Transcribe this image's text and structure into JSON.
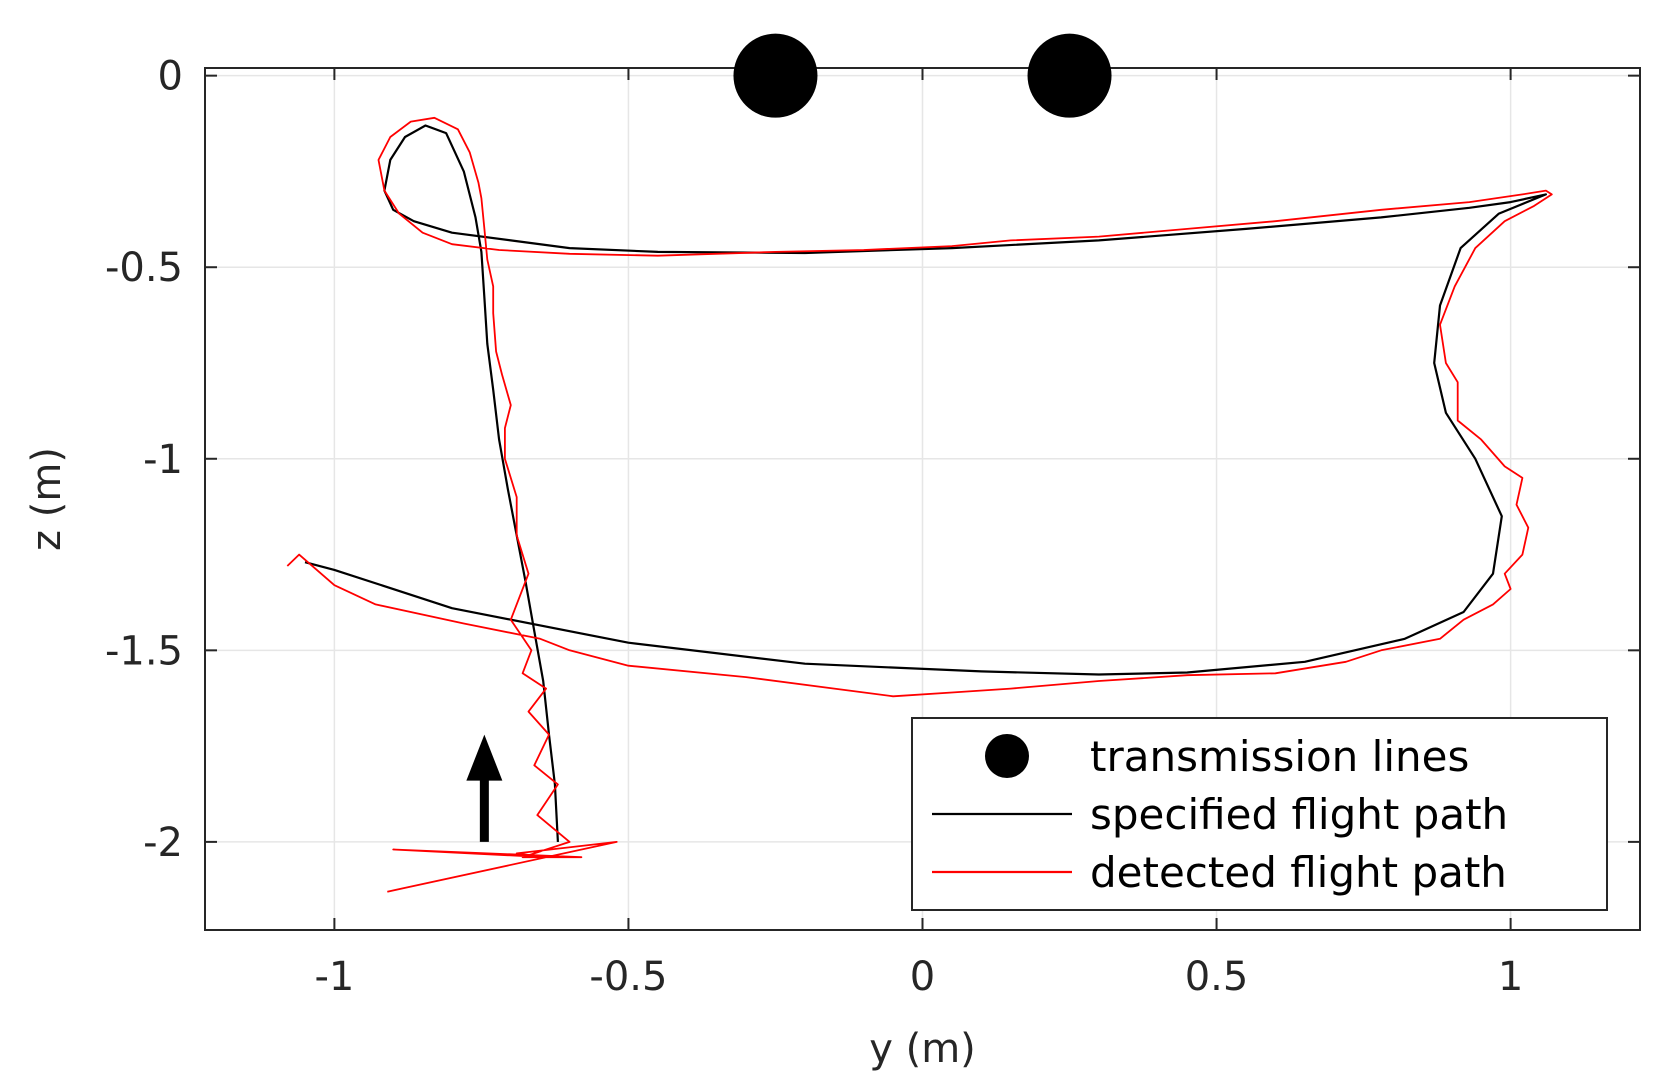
{
  "chart_data": {
    "type": "line",
    "title": "",
    "xlabel": "y (m)",
    "ylabel": "z (m)",
    "xlim": [
      -1.22,
      1.22
    ],
    "ylim": [
      -2.23,
      0.02
    ],
    "grid": true,
    "x_ticks": [
      {
        "value": -1,
        "label": "-1"
      },
      {
        "value": -0.5,
        "label": "-0.5"
      },
      {
        "value": 0,
        "label": "0"
      },
      {
        "value": 0.5,
        "label": "0.5"
      },
      {
        "value": 1,
        "label": "1"
      }
    ],
    "y_ticks": [
      {
        "value": 0,
        "label": "0"
      },
      {
        "value": -0.5,
        "label": "-0.5"
      },
      {
        "value": -1,
        "label": "-1"
      },
      {
        "value": -1.5,
        "label": "-1.5"
      },
      {
        "value": -2,
        "label": "-2"
      }
    ],
    "colors": {
      "specified": "#000000",
      "detected": "#ff0000",
      "markers": "#000000"
    },
    "series": [
      {
        "name": "transmission lines",
        "kind": "scatter",
        "x": [
          -0.25,
          0.25
        ],
        "y": [
          0,
          0
        ]
      },
      {
        "name": "specified flight path",
        "kind": "line",
        "x": [
          -0.62,
          -0.625,
          -0.635,
          -0.645,
          -0.66,
          -0.675,
          -0.69,
          -0.705,
          -0.72,
          -0.73,
          -0.74,
          -0.745,
          -0.75,
          -0.76,
          -0.78,
          -0.81,
          -0.845,
          -0.88,
          -0.905,
          -0.915,
          -0.9,
          -0.865,
          -0.8,
          -0.7,
          -0.6,
          -0.45,
          -0.2,
          0.05,
          0.3,
          0.55,
          0.78,
          0.93,
          1.0,
          1.06,
          0.98,
          0.915,
          0.88,
          0.87,
          0.89,
          0.94,
          0.985,
          0.97,
          0.92,
          0.82,
          0.65,
          0.45,
          0.3,
          0.1,
          -0.2,
          -0.5,
          -0.8,
          -1.0,
          -1.05
        ],
        "y": [
          -2.0,
          -1.85,
          -1.72,
          -1.58,
          -1.45,
          -1.32,
          -1.2,
          -1.08,
          -0.95,
          -0.82,
          -0.7,
          -0.58,
          -0.46,
          -0.37,
          -0.25,
          -0.15,
          -0.13,
          -0.16,
          -0.22,
          -0.3,
          -0.35,
          -0.38,
          -0.41,
          -0.43,
          -0.45,
          -0.46,
          -0.463,
          -0.45,
          -0.43,
          -0.4,
          -0.37,
          -0.345,
          -0.33,
          -0.31,
          -0.36,
          -0.45,
          -0.6,
          -0.75,
          -0.88,
          -1.0,
          -1.15,
          -1.3,
          -1.4,
          -1.47,
          -1.53,
          -1.558,
          -1.563,
          -1.555,
          -1.535,
          -1.48,
          -1.39,
          -1.29,
          -1.27
        ]
      },
      {
        "name": "detected flight path",
        "kind": "line",
        "x": [
          -0.91,
          -0.52,
          -0.69,
          -0.64,
          -0.9,
          -0.58,
          -0.68,
          -0.6,
          -0.655,
          -0.62,
          -0.66,
          -0.635,
          -0.67,
          -0.64,
          -0.68,
          -0.665,
          -0.7,
          -0.67,
          -0.69,
          -0.69,
          -0.71,
          -0.71,
          -0.7,
          -0.715,
          -0.725,
          -0.73,
          -0.73,
          -0.74,
          -0.745,
          -0.75,
          -0.755,
          -0.77,
          -0.79,
          -0.83,
          -0.87,
          -0.905,
          -0.925,
          -0.915,
          -0.89,
          -0.85,
          -0.8,
          -0.72,
          -0.6,
          -0.45,
          -0.25,
          -0.1,
          0.05,
          0.15,
          0.3,
          0.45,
          0.6,
          0.78,
          0.93,
          1.02,
          1.06,
          1.07,
          1.04,
          0.99,
          0.94,
          0.905,
          0.88,
          0.89,
          0.91,
          0.91,
          0.95,
          0.99,
          1.02,
          1.01,
          1.03,
          1.02,
          0.99,
          1.0,
          0.97,
          0.92,
          0.88,
          0.78,
          0.72,
          0.6,
          0.45,
          0.3,
          0.15,
          0.05,
          -0.05,
          -0.15,
          -0.3,
          -0.5,
          -0.6,
          -0.65,
          -0.78,
          -0.93,
          -1.0,
          -1.06,
          -1.08
        ],
        "y": [
          -2.13,
          -2.0,
          -2.03,
          -2.04,
          -2.02,
          -2.04,
          -2.04,
          -2.0,
          -1.93,
          -1.85,
          -1.8,
          -1.72,
          -1.66,
          -1.6,
          -1.56,
          -1.5,
          -1.42,
          -1.3,
          -1.2,
          -1.1,
          -1.0,
          -0.92,
          -0.86,
          -0.78,
          -0.72,
          -0.62,
          -0.55,
          -0.48,
          -0.4,
          -0.32,
          -0.28,
          -0.2,
          -0.14,
          -0.11,
          -0.12,
          -0.16,
          -0.22,
          -0.3,
          -0.36,
          -0.41,
          -0.44,
          -0.455,
          -0.465,
          -0.47,
          -0.46,
          -0.455,
          -0.445,
          -0.43,
          -0.42,
          -0.4,
          -0.38,
          -0.35,
          -0.33,
          -0.31,
          -0.3,
          -0.31,
          -0.34,
          -0.38,
          -0.45,
          -0.55,
          -0.65,
          -0.75,
          -0.8,
          -0.9,
          -0.95,
          -1.02,
          -1.05,
          -1.12,
          -1.18,
          -1.25,
          -1.3,
          -1.34,
          -1.38,
          -1.42,
          -1.47,
          -1.5,
          -1.53,
          -1.56,
          -1.565,
          -1.58,
          -1.6,
          -1.61,
          -1.62,
          -1.6,
          -1.57,
          -1.54,
          -1.5,
          -1.47,
          -1.43,
          -1.38,
          -1.33,
          -1.25,
          -1.28
        ]
      }
    ],
    "annotations": [
      {
        "kind": "arrow",
        "x": -0.745,
        "y_from": -2.0,
        "y_to": -1.72,
        "meaning": "direction of travel"
      }
    ],
    "legend": {
      "position": "bottom-right",
      "entries": [
        {
          "label": "transmission lines",
          "symbol": "dot"
        },
        {
          "label": "specified flight path",
          "symbol": "black-line"
        },
        {
          "label": "detected flight path",
          "symbol": "red-line"
        }
      ]
    }
  }
}
